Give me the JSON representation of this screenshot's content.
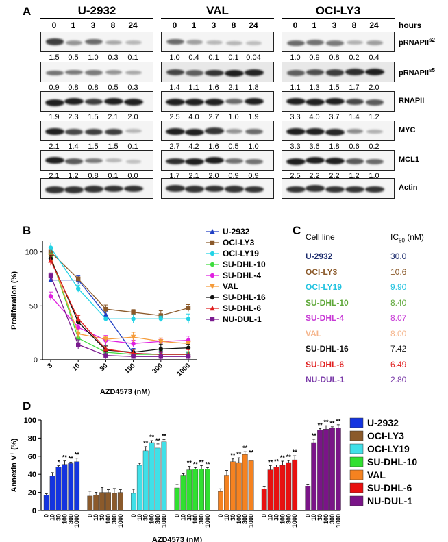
{
  "panelA": {
    "label": "A",
    "hours_label": "hours",
    "time_points": [
      "0",
      "1",
      "3",
      "8",
      "24"
    ],
    "cell_lines": [
      "U-2932",
      "VAL",
      "OCI-LY3"
    ],
    "blots": [
      {
        "name": "pRNAPIIs2",
        "display": "pRNAPII",
        "sup": "s2",
        "quant": [
          [
            "1.5",
            "0.5",
            "1.0",
            "0.3",
            "0.1"
          ],
          [
            "1.0",
            "0.4",
            "0.1",
            "0.1",
            "0.04"
          ],
          [
            "1.0",
            "0.9",
            "0.8",
            "0.2",
            "0.4"
          ]
        ]
      },
      {
        "name": "pRNAPIIs5",
        "display": "pRNAPII",
        "sup": "s5",
        "quant": [
          [
            "0.9",
            "0.8",
            "0.8",
            "0.5",
            "0.3"
          ],
          [
            "1.4",
            "1.1",
            "1.6",
            "2.1",
            "1.8"
          ],
          [
            "1.1",
            "1.3",
            "1.5",
            "1.7",
            "2.0"
          ]
        ]
      },
      {
        "name": "RNAPII",
        "display": "RNAPII",
        "sup": "",
        "quant": [
          [
            "1.9",
            "2.3",
            "1.5",
            "2.1",
            "2.0"
          ],
          [
            "2.5",
            "4.0",
            "2.7",
            "1.0",
            "1.9"
          ],
          [
            "3.3",
            "4.0",
            "3.7",
            "1.4",
            "1.2"
          ]
        ]
      },
      {
        "name": "MYC",
        "display": "MYC",
        "sup": "",
        "quant": [
          [
            "2.1",
            "1.4",
            "1.5",
            "1.5",
            "0.1"
          ],
          [
            "2.7",
            "4.2",
            "1.6",
            "0.5",
            "1.0"
          ],
          [
            "3.3",
            "3.6",
            "1.8",
            "0.6",
            "0.2"
          ]
        ]
      },
      {
        "name": "MCL1",
        "display": "MCL1",
        "sup": "",
        "quant": [
          [
            "2.1",
            "1.2",
            "0.8",
            "0.1",
            "0.0"
          ],
          [
            "1.7",
            "2.1",
            "2.0",
            "0.9",
            "0.9"
          ],
          [
            "2.5",
            "2.2",
            "2.2",
            "1.2",
            "1.0"
          ]
        ]
      },
      {
        "name": "Actin",
        "display": "Actin",
        "sup": "",
        "quant": null
      }
    ]
  },
  "panelB": {
    "label": "B",
    "chart_data": {
      "type": "line",
      "title": "",
      "xlabel": "AZD4573 (nM)",
      "ylabel": "Proliferation (%)",
      "x": [
        "3",
        "10",
        "30",
        "100",
        "300",
        "1000"
      ],
      "yticks": [
        "0",
        "50",
        "100"
      ],
      "ylim": [
        0,
        110
      ],
      "series": [
        {
          "name": "U-2932",
          "color": "#1f3fc4",
          "marker": "triangle",
          "values": [
            74,
            74,
            42,
            6,
            5,
            5
          ]
        },
        {
          "name": "OCI-LY3",
          "color": "#8b5a2b",
          "marker": "square",
          "values": [
            100,
            75,
            47,
            44,
            41,
            48
          ]
        },
        {
          "name": "OCI-LY19",
          "color": "#22d3e6",
          "marker": "circle",
          "values": [
            104,
            66,
            38,
            38,
            38,
            38
          ]
        },
        {
          "name": "SU-DHL-10",
          "color": "#3ddc3d",
          "marker": "circle",
          "values": [
            96,
            20,
            7,
            5,
            5,
            5
          ]
        },
        {
          "name": "SU-DHL-4",
          "color": "#e020e0",
          "marker": "circle",
          "values": [
            59,
            30,
            18,
            15,
            17,
            18
          ]
        },
        {
          "name": "VAL",
          "color": "#f59b3a",
          "marker": "triangle-down",
          "values": [
            96,
            24,
            19,
            21,
            17,
            15
          ]
        },
        {
          "name": "SU-DHL-16",
          "color": "#111111",
          "marker": "circle",
          "values": [
            94,
            35,
            9,
            7,
            10,
            11
          ]
        },
        {
          "name": "SU-DHL-6",
          "color": "#e02020",
          "marker": "triangle",
          "values": [
            92,
            38,
            10,
            6,
            5,
            5
          ]
        },
        {
          "name": "NU-DUL-1",
          "color": "#7a1a8f",
          "marker": "square",
          "values": [
            78,
            14,
            4,
            3,
            3,
            3
          ]
        }
      ]
    }
  },
  "panelC": {
    "label": "C",
    "col1": "Cell line",
    "col2_prefix": "IC",
    "col2_sub": "50",
    "col2_suffix": " (nM)",
    "rows": [
      {
        "name": "U-2932",
        "ic50": "30.0",
        "color": "#1a2a6c"
      },
      {
        "name": "OCI-LY3",
        "ic50": "10.6",
        "color": "#8b5a2b"
      },
      {
        "name": "OCI-LY19",
        "ic50": "9.90",
        "color": "#22c3e0"
      },
      {
        "name": "SU-DHL-10",
        "ic50": "8.40",
        "color": "#5fa83a"
      },
      {
        "name": "SU-DHL-4",
        "ic50": "8.07",
        "color": "#c83ad6"
      },
      {
        "name": "VAL",
        "ic50": "8.00",
        "color": "#f5b48a"
      },
      {
        "name": "SU-DHL-16",
        "ic50": "7.42",
        "color": "#111111"
      },
      {
        "name": "SU-DHL-6",
        "ic50": "6.49",
        "color": "#e02020"
      },
      {
        "name": "NU-DUL-1",
        "ic50": "2.80",
        "color": "#7a3aa8"
      }
    ]
  },
  "panelD": {
    "label": "D",
    "chart_data": {
      "type": "bar",
      "xlabel": "AZD4573 (nM)",
      "ylabel": "Annexin V+ (%)",
      "ylabel_main": "Annexin V",
      "ylabel_sup": "+",
      "ylabel_tail": " (%)",
      "ylim": [
        0,
        100
      ],
      "yticks": [
        "0",
        "20",
        "40",
        "60",
        "80",
        "100"
      ],
      "categories": [
        "0",
        "10",
        "30",
        "100",
        "300",
        "1000"
      ],
      "series": [
        {
          "name": "U-2932",
          "color": "#1434e0",
          "values": [
            17,
            38,
            48,
            51,
            52,
            54
          ],
          "sig": [
            "",
            "",
            "*",
            "**",
            "**",
            "**"
          ]
        },
        {
          "name": "OCI-LY3",
          "color": "#8b5a2b",
          "values": [
            16,
            17,
            20,
            20,
            19,
            20
          ],
          "sig": [
            "",
            "",
            "",
            "",
            "",
            ""
          ]
        },
        {
          "name": "OCI-LY19",
          "color": "#40e0e8",
          "values": [
            19,
            50,
            66,
            75,
            69,
            76
          ],
          "sig": [
            "",
            "",
            "**",
            "**",
            "**",
            "**"
          ]
        },
        {
          "name": "SU-DHL-10",
          "color": "#30e030",
          "values": [
            25,
            39,
            45,
            46,
            46,
            46
          ],
          "sig": [
            "",
            "",
            "**",
            "**",
            "**",
            "**"
          ]
        },
        {
          "name": "VAL",
          "color": "#f58220",
          "values": [
            21,
            39,
            54,
            53,
            62,
            55
          ],
          "sig": [
            "",
            "",
            "**",
            "**",
            "**",
            "**"
          ]
        },
        {
          "name": "SU-DHL-6",
          "color": "#e81010",
          "values": [
            24,
            45,
            48,
            50,
            53,
            56
          ],
          "sig": [
            "",
            "**",
            "**",
            "**",
            "**",
            "**"
          ]
        },
        {
          "name": "NU-DUL-1",
          "color": "#7a1488",
          "values": [
            27,
            75,
            89,
            90,
            91,
            91
          ],
          "sig": [
            "",
            "**",
            "**",
            "**",
            "**",
            "**"
          ]
        }
      ]
    }
  }
}
